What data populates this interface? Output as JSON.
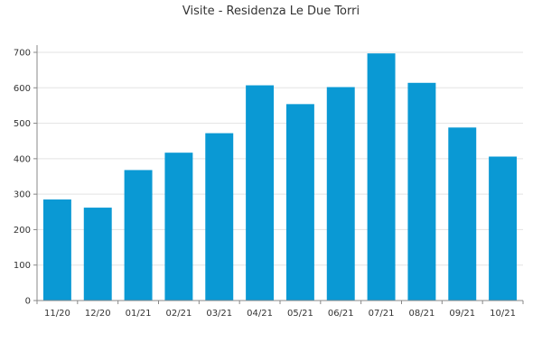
{
  "chart_data": {
    "type": "bar",
    "title": "Visite - Residenza Le Due Torri",
    "categories": [
      "11/20",
      "12/20",
      "01/21",
      "02/21",
      "03/21",
      "04/21",
      "05/21",
      "06/21",
      "07/21",
      "08/21",
      "09/21",
      "10/21"
    ],
    "values": [
      285,
      262,
      368,
      417,
      472,
      607,
      554,
      602,
      697,
      614,
      488,
      406
    ],
    "xlabel": "",
    "ylabel": "",
    "ylim": [
      0,
      700
    ],
    "yticks": [
      0,
      100,
      200,
      300,
      400,
      500,
      600,
      700
    ],
    "grid": true,
    "legend": "none",
    "colors": {
      "bar": "#0a99d4",
      "grid": "#e3e3e3",
      "axis": "#888888"
    }
  }
}
